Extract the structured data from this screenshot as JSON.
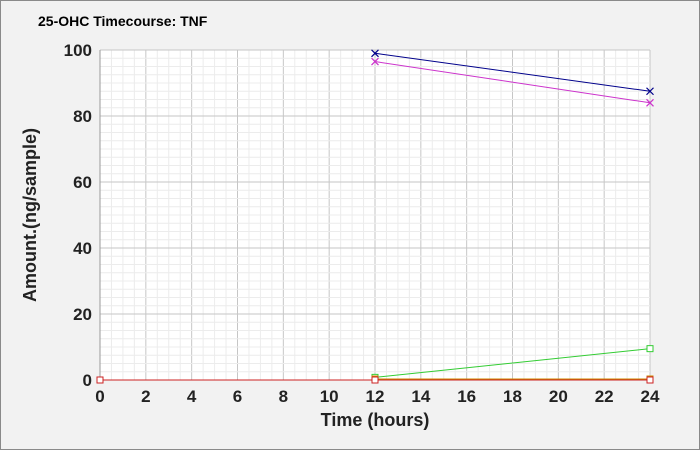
{
  "chart_data": {
    "type": "line",
    "title": "25-OHC Timecourse: TNF",
    "xlabel": "Time (hours)",
    "ylabel": "Amount.(ng/sample)",
    "xlim": [
      0,
      24
    ],
    "ylim": [
      0,
      100
    ],
    "x_ticks": [
      "0",
      "2",
      "4",
      "6",
      "8",
      "10",
      "12",
      "14",
      "16",
      "18",
      "20",
      "22",
      "24"
    ],
    "y_ticks": [
      "0",
      "20",
      "40",
      "60",
      "80",
      "100"
    ],
    "grid": true,
    "legend": "none",
    "series": [
      {
        "color": "#00008b",
        "marker": "x",
        "points": [
          [
            12,
            99
          ],
          [
            24,
            87.5
          ]
        ]
      },
      {
        "color": "#cc33cc",
        "marker": "x",
        "points": [
          [
            12,
            96.5
          ],
          [
            24,
            84
          ]
        ]
      },
      {
        "color": "#33cc33",
        "marker": "square",
        "points": [
          [
            12,
            0.8
          ],
          [
            24,
            9.5
          ]
        ]
      },
      {
        "color": "#cc8800",
        "marker": "square",
        "points": [
          [
            12,
            0.3
          ],
          [
            24,
            0.3
          ]
        ]
      },
      {
        "color": "#cc2222",
        "marker": "square",
        "points": [
          [
            0,
            0
          ],
          [
            12,
            0
          ],
          [
            24,
            0
          ]
        ]
      }
    ]
  }
}
